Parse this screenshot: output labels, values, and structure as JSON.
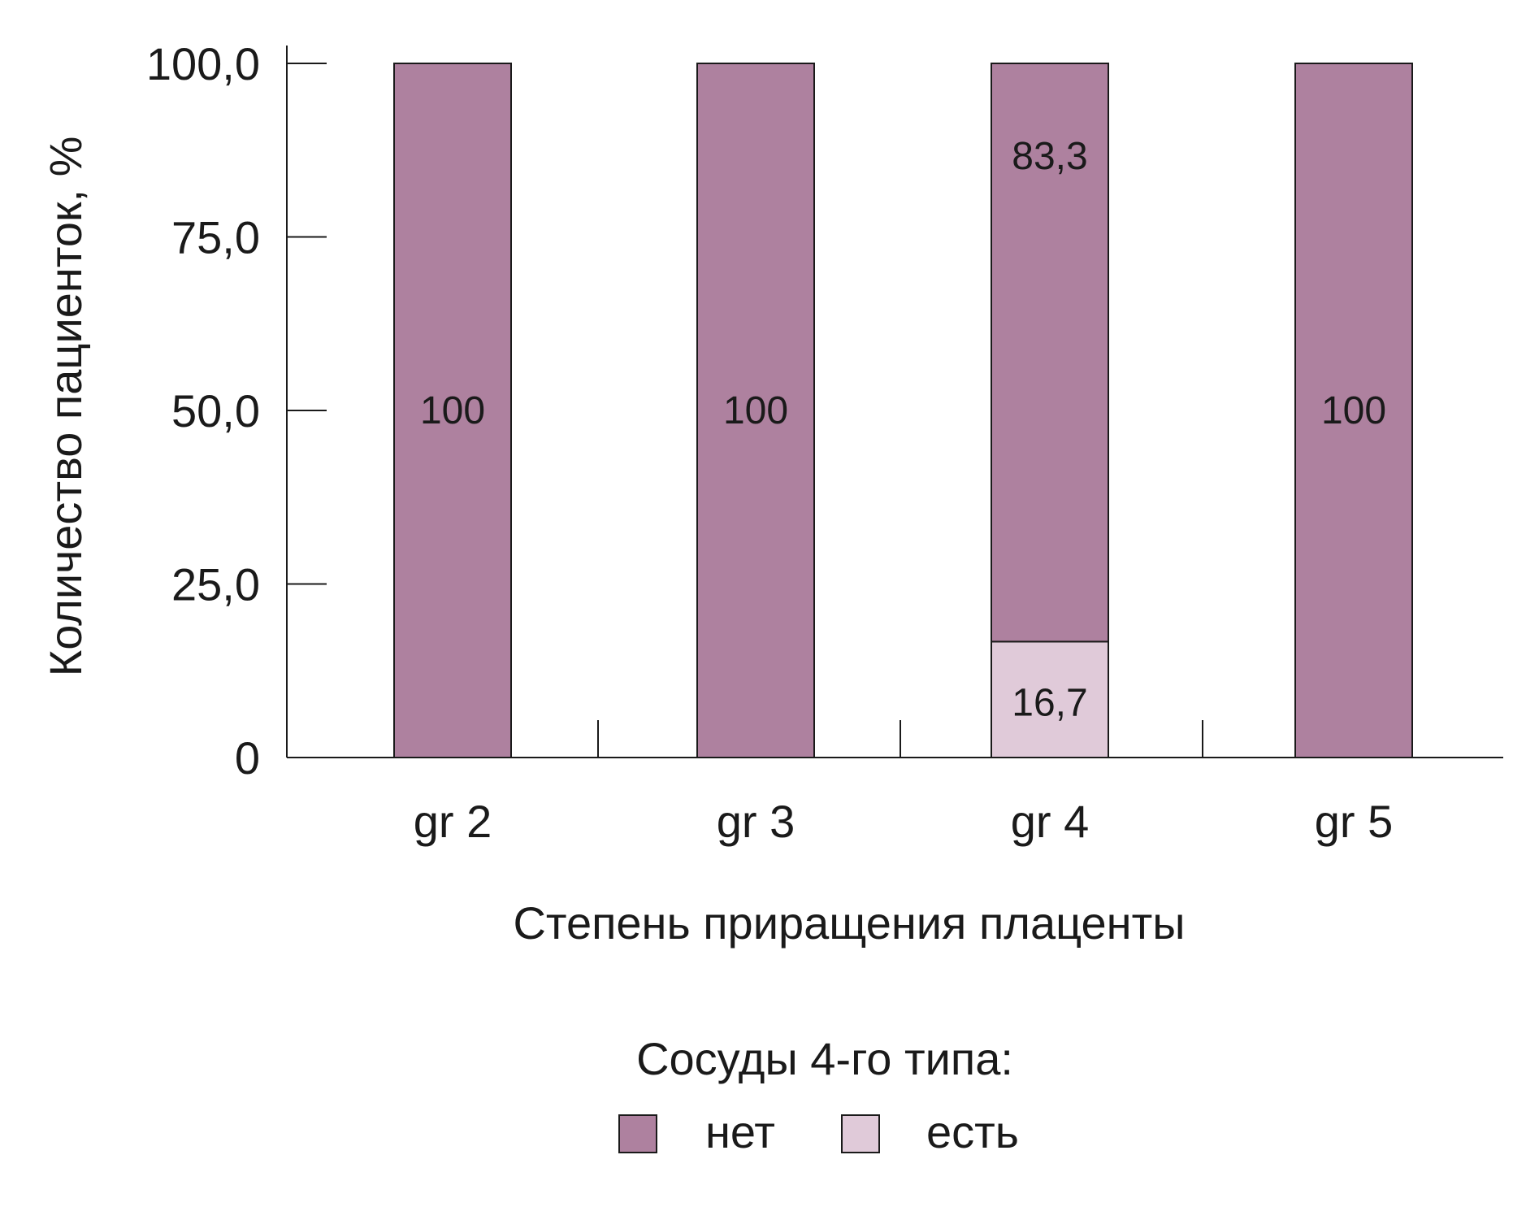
{
  "chart_data": {
    "type": "bar",
    "stacked": true,
    "categories": [
      "gr 2",
      "gr 3",
      "gr 4",
      "gr 5"
    ],
    "series": [
      {
        "name": "есть",
        "values": [
          0,
          0,
          16.7,
          0
        ],
        "labels": [
          "",
          "",
          "16,7",
          ""
        ],
        "color": "#e0cad9"
      },
      {
        "name": "нет",
        "values": [
          100,
          100,
          83.3,
          100
        ],
        "labels": [
          "100",
          "100",
          "83,3",
          "100"
        ],
        "color": "#ae819f"
      }
    ],
    "xlabel": "Степень приращения плаценты",
    "ylabel": "Количество пациенток, %",
    "ylim": [
      0,
      100
    ],
    "yticks": [
      0,
      25,
      50,
      75,
      100
    ],
    "ytick_labels": [
      "0",
      "25,0",
      "50,0",
      "75,0",
      "100,0"
    ],
    "legend": {
      "title": "Сосуды 4-го типа:",
      "position": "bottom-center",
      "items": [
        {
          "label": "нет",
          "color": "#ae819f"
        },
        {
          "label": "есть",
          "color": "#e0cad9"
        }
      ]
    },
    "grid": false
  }
}
